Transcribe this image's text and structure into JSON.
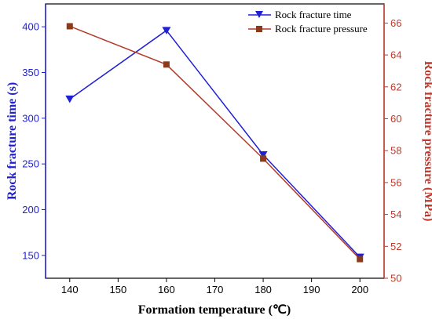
{
  "chart_data": {
    "type": "line",
    "title": "",
    "xlabel": "Formation temperature (℃)",
    "x": [
      140,
      160,
      180,
      200
    ],
    "xlim": [
      135,
      205
    ],
    "xticks": [
      140,
      150,
      160,
      170,
      180,
      190,
      200
    ],
    "legend_position": "top-right",
    "grid": false,
    "y_left": {
      "label": "Rock fracture time (s)",
      "lim": [
        125,
        425
      ],
      "ticks": [
        150,
        200,
        250,
        300,
        350,
        400
      ],
      "color": "#1f1fd6"
    },
    "y_right": {
      "label": "Rock fracture pressure (MPa)",
      "lim": [
        50,
        67.2
      ],
      "ticks": [
        50,
        52,
        54,
        56,
        58,
        60,
        62,
        64,
        66
      ],
      "color": "#c0392b"
    },
    "series": [
      {
        "name": "Rock fracture time",
        "axis": "left",
        "marker": "triangle-down",
        "color": "#1f1fd6",
        "values": [
          321,
          396,
          260,
          148
        ]
      },
      {
        "name": "Rock fracture pressure",
        "axis": "right",
        "marker": "square",
        "color": "#b33a2a",
        "marker_color": "#8b3a1a",
        "values": [
          65.8,
          63.4,
          57.5,
          51.2
        ]
      }
    ]
  }
}
